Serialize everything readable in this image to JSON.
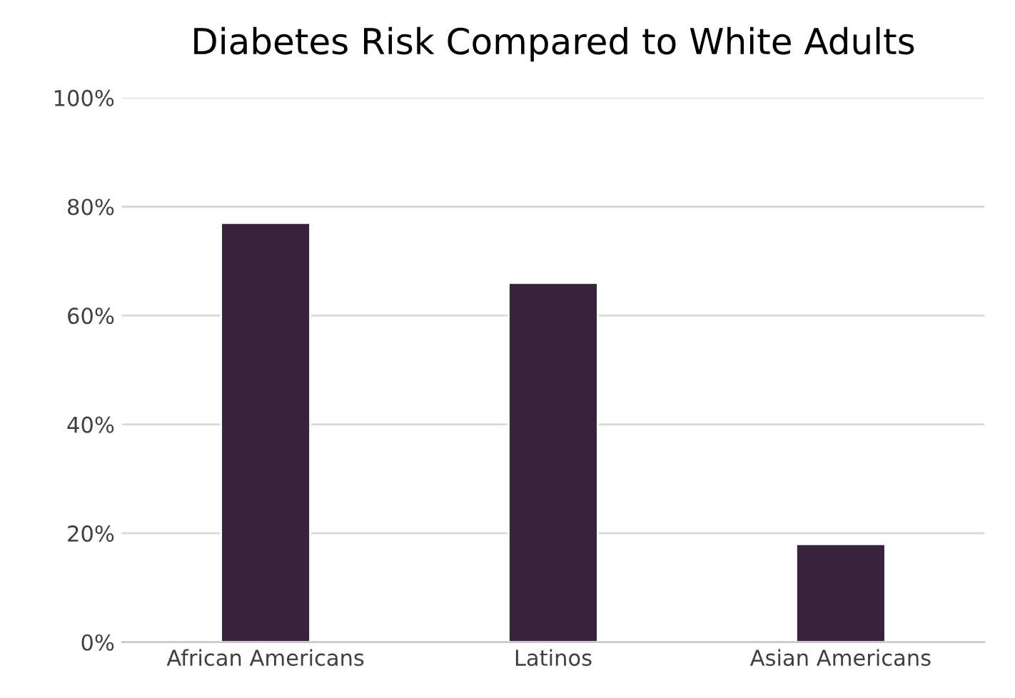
{
  "chart_data": {
    "type": "bar",
    "title": "Diabetes Risk Compared to White Adults",
    "categories": [
      "African Americans",
      "Latinos",
      "Asian Americans"
    ],
    "values": [
      77,
      66,
      18
    ],
    "color": "#38233d",
    "ylim": [
      0,
      100
    ],
    "yticks": [
      {
        "value": 0,
        "label": "0%"
      },
      {
        "value": 20,
        "label": "20%"
      },
      {
        "value": 40,
        "label": "40%"
      },
      {
        "value": 60,
        "label": "60%"
      },
      {
        "value": 80,
        "label": "80%"
      },
      {
        "value": 100,
        "label": "100%"
      }
    ],
    "grid": "y",
    "legend": false
  }
}
